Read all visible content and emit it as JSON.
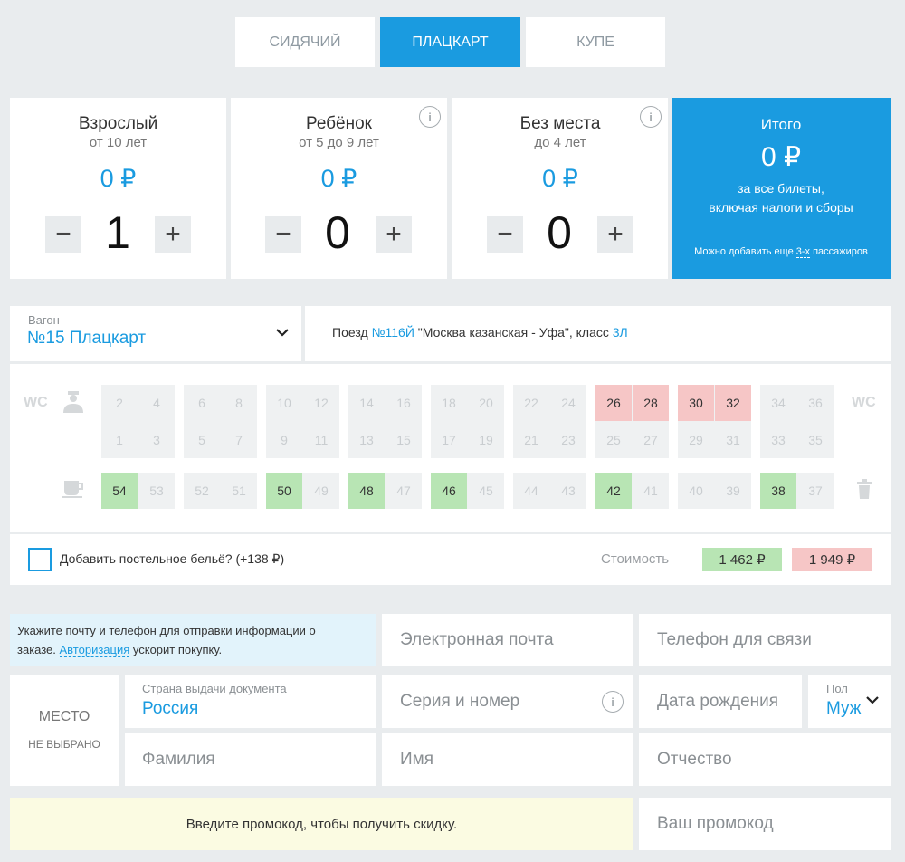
{
  "tabs": [
    {
      "label": "СИДЯЧИЙ",
      "active": false
    },
    {
      "label": "ПЛАЦКАРТ",
      "active": true
    },
    {
      "label": "КУПЕ",
      "active": false
    }
  ],
  "passengers": [
    {
      "title": "Взрослый",
      "subtitle": "от 10 лет",
      "price": "0 ₽",
      "count": "1"
    },
    {
      "title": "Ребёнок",
      "subtitle": "от 5 до 9 лет",
      "price": "0 ₽",
      "count": "0"
    },
    {
      "title": "Без места",
      "subtitle": "до 4 лет",
      "price": "0 ₽",
      "count": "0"
    }
  ],
  "total": {
    "title": "Итого",
    "amount": "0 ₽",
    "desc_line1": "за все билеты,",
    "desc_line2": "включая налоги и сборы",
    "note_prefix": "Можно добавить еще ",
    "note_link": "3-х",
    "note_suffix": " пассажиров"
  },
  "car": {
    "label": "Вагон",
    "value": "№15 Плацкарт",
    "train_prefix": "Поезд ",
    "train_number": "№116Й",
    "train_route": " \"Москва казанская - Уфа\", класс ",
    "train_class": "3Л"
  },
  "map": {
    "wc_left": "WC",
    "wc_right": "WC",
    "top_upper": [
      "2",
      "4",
      "6",
      "8",
      "10",
      "12",
      "14",
      "16",
      "18",
      "20",
      "22",
      "24",
      "26",
      "28",
      "30",
      "32",
      "34",
      "36"
    ],
    "top_lower": [
      "1",
      "3",
      "5",
      "7",
      "9",
      "11",
      "13",
      "15",
      "17",
      "19",
      "21",
      "23",
      "25",
      "27",
      "29",
      "31",
      "33",
      "35"
    ],
    "side": [
      "54",
      "53",
      "52",
      "51",
      "50",
      "49",
      "48",
      "47",
      "46",
      "45",
      "44",
      "43",
      "42",
      "41",
      "40",
      "39",
      "38",
      "37"
    ],
    "green_seats": [
      "54",
      "50",
      "48",
      "46",
      "42",
      "38"
    ],
    "red_seats": [
      "26",
      "28",
      "30",
      "32"
    ],
    "colors": {
      "available": "#b8e5b4",
      "upper_available": "#f6c6c6",
      "occupied": "#eff1f2",
      "accent": "#1a9be0"
    }
  },
  "bedding": {
    "label": "Добавить постельное бельё? (+138 ₽)"
  },
  "cost": {
    "label": "Стоимость",
    "price_green": "1 462 ₽",
    "price_red": "1 949 ₽"
  },
  "contact": {
    "hint_line1": "Укажите почту и телефон для отправки информации о",
    "hint_prefix": "заказе. ",
    "hint_link": "Авторизация",
    "hint_suffix": " ускорит покупку.",
    "email_placeholder": "Электронная почта",
    "phone_placeholder": "Телефон для связи"
  },
  "passenger_form": {
    "seat_label": "МЕСТО",
    "seat_value": "НЕ ВЫБРАНО",
    "country_label": "Страна выдачи документа",
    "country_value": "Россия",
    "doc_placeholder": "Серия и номер",
    "birth_placeholder": "Дата рождения",
    "gender_label": "Пол",
    "gender_value": "Муж",
    "surname_placeholder": "Фамилия",
    "name_placeholder": "Имя",
    "patronymic_placeholder": "Отчество"
  },
  "promo": {
    "hint": "Введите промокод, чтобы получить скидку.",
    "placeholder": "Ваш промокод"
  }
}
